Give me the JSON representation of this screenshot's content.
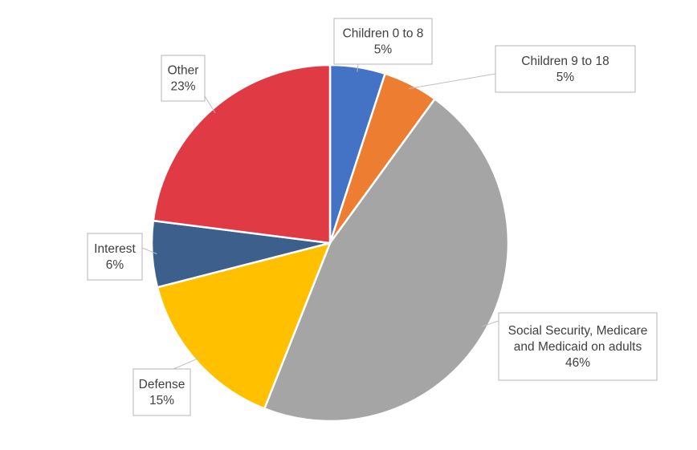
{
  "chart_data": {
    "type": "pie",
    "title": "",
    "slices": [
      {
        "label": "Children 0 to 8",
        "value": 5,
        "value_label": "5%",
        "color": "#4472c4"
      },
      {
        "label": "Children 9 to 18",
        "value": 5,
        "value_label": "5%",
        "color": "#ed7d31"
      },
      {
        "label": "Social Security, Medicare and Medicaid on adults",
        "value": 46,
        "value_label": "46%",
        "color": "#a5a5a5"
      },
      {
        "label": "Defense",
        "value": 15,
        "value_label": "15%",
        "color": "#ffc000"
      },
      {
        "label": "Interest",
        "value": 6,
        "value_label": "6%",
        "color": "#3d5f8c"
      },
      {
        "label": "Other",
        "value": 23,
        "value_label": "23%",
        "color": "#e03a45"
      }
    ],
    "legend": "none",
    "data_labels": "callouts"
  }
}
